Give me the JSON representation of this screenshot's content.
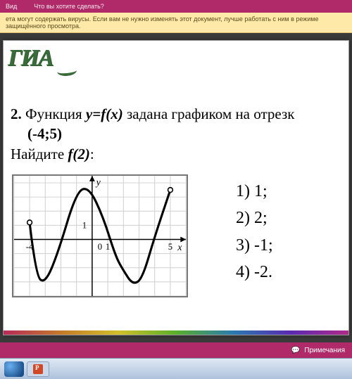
{
  "app": {
    "ribbon_items": [
      "Вид",
      "Что вы хотите сделать?"
    ],
    "protected_view_msg": "ета могут содержать вирусы. Если вам не нужно изменять этот документ, лучше работать с ним в режиме защищённого просмотра.",
    "status_notes": "Примечания"
  },
  "slide": {
    "logo_text": "ГИА",
    "question_number": "2.",
    "question_text_1": "Функция",
    "question_yfx": "y=f(x)",
    "question_text_2": "задана графиком на отрезк",
    "interval": "(-4;5)",
    "find_text": "Найдите",
    "find_f2": "f(2)",
    "find_colon": ":",
    "answers": [
      {
        "n": "1)",
        "v": "1;"
      },
      {
        "n": "2)",
        "v": "2;"
      },
      {
        "n": "3)",
        "v": "-1;"
      },
      {
        "n": "4)",
        "v": "-2."
      }
    ]
  },
  "chart": {
    "type": "line",
    "xlim": [
      -5,
      6
    ],
    "ylim": [
      -4,
      4.5
    ],
    "xticks": [
      -4,
      0,
      1,
      5
    ],
    "yticks": [
      1
    ],
    "grid_color": "#cfcfcf",
    "axis_color": "#000000",
    "curve_color": "#000000",
    "curve_width": 3.2,
    "open_points": [
      {
        "x": -4,
        "y": 1.2
      },
      {
        "x": 5,
        "y": 3.5
      }
    ],
    "curve_points": [
      {
        "x": -4,
        "y": 1.2
      },
      {
        "x": -3.6,
        "y": -2.6
      },
      {
        "x": -3.0,
        "y": -3.1
      },
      {
        "x": -2.2,
        "y": -1.0
      },
      {
        "x": -1.0,
        "y": 3.4
      },
      {
        "x": -0.2,
        "y": 3.7
      },
      {
        "x": 0.7,
        "y": 1.6
      },
      {
        "x": 1.5,
        "y": -1.2
      },
      {
        "x": 2.0,
        "y": -2.2
      },
      {
        "x": 2.6,
        "y": -3.2
      },
      {
        "x": 3.2,
        "y": -2.8
      },
      {
        "x": 4.0,
        "y": 0.2
      },
      {
        "x": 5.0,
        "y": 3.5
      }
    ],
    "axis_labels": {
      "x": "x",
      "y": "y",
      "fontsize": 14,
      "font_style": "italic"
    },
    "tick_labels": {
      "-4": "-4",
      "0": "0",
      "1": "1",
      "5": "5",
      "y1": "1"
    },
    "background_color": "#ffffff",
    "open_point_radius": 3.5,
    "open_point_stroke": "#000000",
    "open_point_fill": "#ffffff"
  },
  "colors": {
    "slide_bg": "#ffffff",
    "ribbon_bg": "#b02a6a",
    "logo_color": "#3a6b3a"
  }
}
